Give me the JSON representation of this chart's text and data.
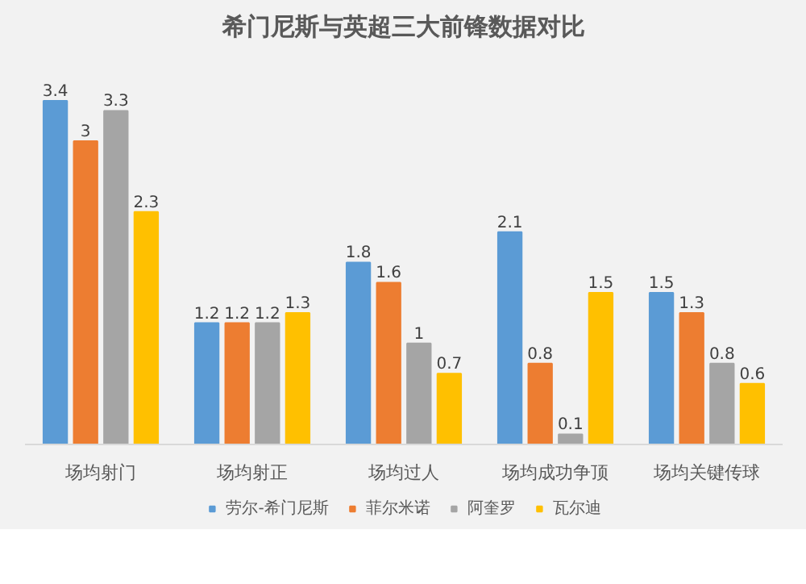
{
  "chart_data": {
    "type": "bar",
    "title": "希门尼斯与英超三大前锋数据对比",
    "categories": [
      "场均射门",
      "场均射正",
      "场均过人",
      "场均成功争顶",
      "场均关键传球"
    ],
    "series": [
      {
        "name": "劳尔-希门尼斯",
        "color": "#5b9bd5",
        "values": [
          3.4,
          1.2,
          1.8,
          2.1,
          1.5
        ]
      },
      {
        "name": "菲尔米诺",
        "color": "#ed7d31",
        "values": [
          3,
          1.2,
          1.6,
          0.8,
          1.3
        ]
      },
      {
        "name": "阿奎罗",
        "color": "#a5a5a5",
        "values": [
          3.3,
          1.2,
          1,
          0.1,
          0.8
        ]
      },
      {
        "name": "瓦尔迪",
        "color": "#ffc000",
        "values": [
          2.3,
          1.3,
          0.7,
          1.5,
          0.6
        ]
      }
    ],
    "data_labels": true,
    "legend": "bottom"
  }
}
